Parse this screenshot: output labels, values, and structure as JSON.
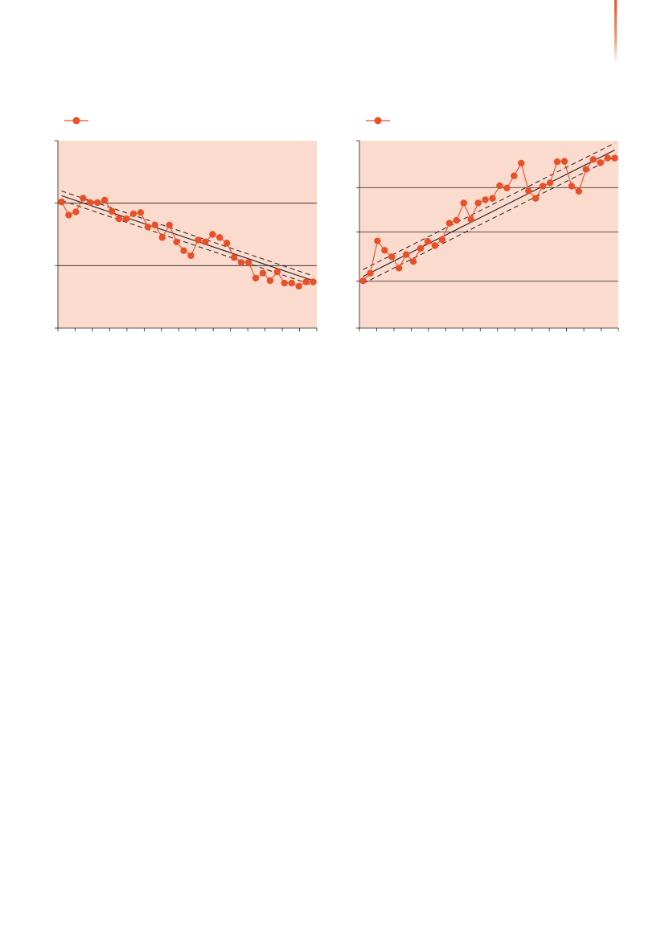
{
  "colors": {
    "accent": "#e8502a",
    "plot_background": "#fadbce",
    "trend": "#231f20"
  },
  "chart_data": [
    {
      "type": "line",
      "title": "",
      "xlabel": "",
      "ylabel": "",
      "legend": {
        "placement": "top-left",
        "marker_color": "#e8502a"
      },
      "grid": true,
      "ylim": [
        0,
        3
      ],
      "y_gridlines": [
        1,
        2
      ],
      "x_count": 36,
      "series": [
        {
          "values": [
            2.02,
            1.81,
            1.86,
            2.08,
            2.01,
            2.01,
            2.05,
            1.87,
            1.75,
            1.75,
            1.83,
            1.85,
            1.62,
            1.65,
            1.45,
            1.65,
            1.38,
            1.24,
            1.16,
            1.41,
            1.38,
            1.5,
            1.45,
            1.36,
            1.13,
            1.05,
            1.05,
            0.8,
            0.88,
            0.76,
            0.9,
            0.72,
            0.72,
            0.67,
            0.74,
            0.74
          ]
        }
      ],
      "trend": {
        "start": 2.12,
        "end": 0.76,
        "band": 0.075
      }
    },
    {
      "type": "line",
      "title": "",
      "xlabel": "",
      "ylabel": "",
      "legend": {
        "placement": "top-left",
        "marker_color": "#e8502a"
      },
      "grid": true,
      "ylim": [
        0,
        4
      ],
      "y_gridlines": [
        1.0,
        2.05,
        3.0
      ],
      "x_count": 36,
      "series": [
        {
          "values": [
            1.01,
            1.17,
            1.86,
            1.66,
            1.52,
            1.28,
            1.57,
            1.42,
            1.7,
            1.85,
            1.76,
            1.89,
            2.24,
            2.3,
            2.67,
            2.32,
            2.67,
            2.74,
            2.77,
            3.04,
            2.99,
            3.25,
            3.52,
            2.93,
            2.77,
            3.03,
            3.1,
            3.55,
            3.56,
            3.03,
            2.92,
            3.39,
            3.6,
            3.53,
            3.63,
            3.63
          ]
        }
      ],
      "trend": {
        "start": 1.1,
        "end": 3.8,
        "band": 0.15
      }
    }
  ]
}
